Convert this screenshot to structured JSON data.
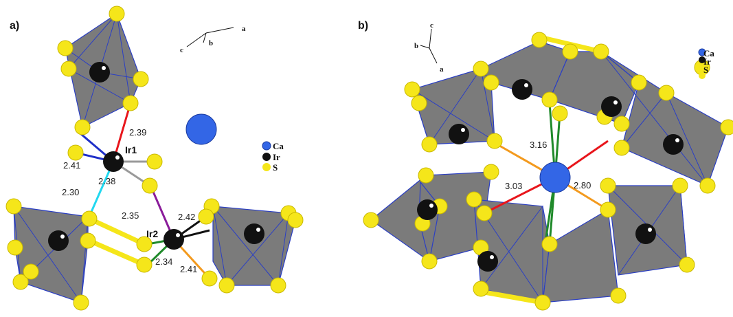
{
  "panels": [
    {
      "label": "a)",
      "axes": [
        "a",
        "b",
        "c"
      ],
      "legend": [
        "Ca",
        "Ir",
        "S"
      ],
      "sites": [
        "Ir1",
        "Ir2"
      ],
      "bonds": [
        "2.39",
        "2.41",
        "2.38",
        "2.30",
        "2.35",
        "2.42",
        "2.34",
        "2.41"
      ]
    },
    {
      "label": "b)",
      "axes": [
        "c",
        "b",
        "a"
      ],
      "legend": [
        "Ca",
        "Ir",
        "S"
      ],
      "bonds": [
        "3.16",
        "3.03",
        "2.80"
      ]
    }
  ]
}
